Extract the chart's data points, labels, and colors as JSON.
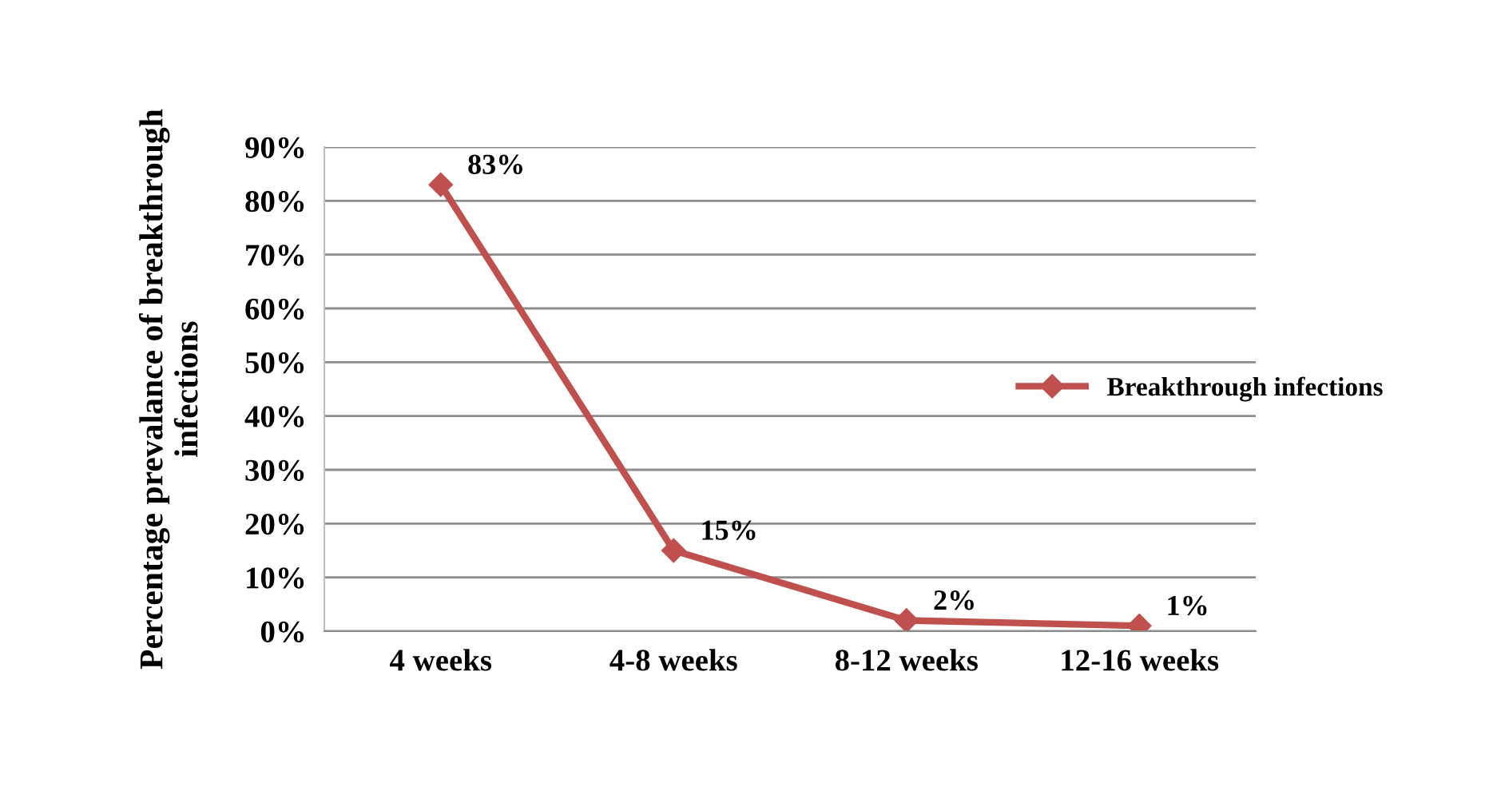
{
  "chart_data": {
    "type": "line",
    "ylabel": "Percentage prevalance of breakthrough\ninfections",
    "categories": [
      "4 weeks",
      "4-8 weeks",
      "8-12 weeks",
      "12-16 weeks"
    ],
    "series": [
      {
        "name": "Breakthrough infections",
        "color": "#c0504d",
        "values": [
          83,
          15,
          2,
          1
        ],
        "value_labels": [
          "83%",
          "15%",
          "2%",
          "1%"
        ]
      }
    ],
    "ylim": [
      0,
      90
    ],
    "yticks": [
      {
        "value": 0,
        "label": "0%"
      },
      {
        "value": 10,
        "label": "10%"
      },
      {
        "value": 20,
        "label": "20%"
      },
      {
        "value": 30,
        "label": "30%"
      },
      {
        "value": 40,
        "label": "40%"
      },
      {
        "value": 50,
        "label": "50%"
      },
      {
        "value": 60,
        "label": "60%"
      },
      {
        "value": 70,
        "label": "70%"
      },
      {
        "value": 80,
        "label": "80%"
      },
      {
        "value": 90,
        "label": "90%"
      }
    ],
    "grid": "y",
    "legend": "right",
    "marker": "diamond",
    "line_style": "solid"
  }
}
